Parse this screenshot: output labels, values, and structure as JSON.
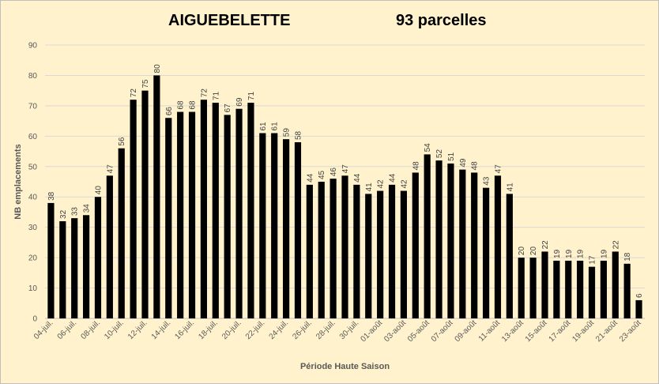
{
  "chart_data": {
    "type": "bar",
    "title": "AIGUEBELETTE",
    "subtitle": "93 parcelles",
    "xlabel": "Période Haute Saison",
    "ylabel": "NB emplacements",
    "ylim": [
      0,
      90
    ],
    "yticks": [
      0,
      10,
      20,
      30,
      40,
      50,
      60,
      70,
      80,
      90
    ],
    "grid": true,
    "legend": "none",
    "bar_color": "#000000",
    "background_color": "#fff2cc",
    "categories": [
      "04-juil.",
      "05-juil.",
      "06-juil.",
      "07-juil.",
      "08-juil.",
      "09-juil.",
      "10-juil.",
      "11-juil.",
      "12-juil.",
      "13-juil.",
      "14-juil.",
      "15-juil.",
      "16-juil.",
      "17-juil.",
      "18-juil.",
      "19-juil.",
      "20-juil.",
      "21-juil.",
      "22-juil.",
      "23-juil.",
      "24-juil.",
      "25-juil.",
      "26-juil.",
      "27-juil.",
      "28-juil.",
      "29-juil.",
      "30-juil.",
      "31-juil.",
      "01-août",
      "02-août",
      "03-août",
      "04-août",
      "05-août",
      "06-août",
      "07-août",
      "08-août",
      "09-août",
      "10-août",
      "11-août",
      "12-août",
      "13-août",
      "14-août",
      "15-août",
      "16-août",
      "17-août",
      "18-août",
      "19-août",
      "20-août",
      "21-août",
      "22-août",
      "23-août"
    ],
    "tick_labels_shown": [
      "04-juil.",
      "06-juil.",
      "08-juil.",
      "10-juil.",
      "12-juil.",
      "14-juil.",
      "16-juil.",
      "18-juil.",
      "20-juil.",
      "22-juil.",
      "24-juil.",
      "26-juil.",
      "28-juil.",
      "30-juil.",
      "01-août",
      "03-août",
      "05-août",
      "07-août",
      "09-août",
      "11-août",
      "13-août",
      "15-août",
      "17-août",
      "19-août",
      "21-août",
      "23-août"
    ],
    "values": [
      38,
      32,
      33,
      34,
      40,
      47,
      56,
      72,
      75,
      80,
      66,
      68,
      68,
      72,
      71,
      67,
      69,
      71,
      61,
      61,
      59,
      58,
      44,
      45,
      46,
      47,
      44,
      41,
      42,
      44,
      42,
      48,
      54,
      52,
      51,
      49,
      48,
      43,
      47,
      41,
      20,
      20,
      22,
      19,
      19,
      19,
      17,
      19,
      22,
      18,
      6
    ]
  }
}
